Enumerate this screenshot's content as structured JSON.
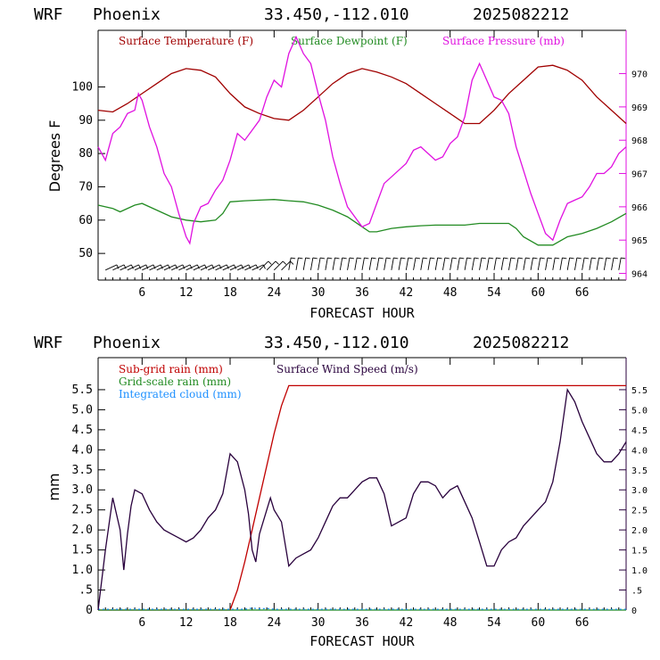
{
  "colors": {
    "temperature": "#a00000",
    "dewpoint": "#228b22",
    "pressure": "#e010e0",
    "subgrid_rain": "#c00000",
    "grid_rain": "#228b22",
    "cloud": "#1e90ff",
    "wind_speed": "#28003c",
    "barbs": "#000000",
    "frame": "#000000"
  },
  "chart_data": [
    {
      "type": "line",
      "header": {
        "model": "WRF",
        "location": "Phoenix",
        "coords": "33.450,-112.010",
        "init": "2025082212"
      },
      "xlabel": "FORECAST HOUR",
      "ylabel": "Degrees F",
      "xlim": [
        0,
        72
      ],
      "ylim": [
        42,
        117
      ],
      "y2lim": [
        963.8,
        971.3
      ],
      "x_ticks": [
        "6",
        "12",
        "18",
        "24",
        "30",
        "36",
        "42",
        "48",
        "54",
        "60",
        "66"
      ],
      "y_ticks": [
        "50",
        "60",
        "70",
        "80",
        "90",
        "100"
      ],
      "y2_ticks": [
        "964",
        "965",
        "966",
        "967",
        "968",
        "969",
        "970"
      ],
      "series": [
        {
          "name": "Surface Temperature (F)",
          "axis": "left",
          "color_key": "temperature",
          "x": [
            0,
            2,
            4,
            6,
            8,
            10,
            12,
            14,
            16,
            18,
            20,
            22,
            24,
            26,
            28,
            30,
            32,
            34,
            36,
            38,
            40,
            42,
            44,
            46,
            48,
            50,
            52,
            54,
            56,
            58,
            60,
            62,
            64,
            66,
            68,
            70,
            72
          ],
          "y": [
            93,
            92.5,
            95,
            98,
            101,
            104,
            105.5,
            105,
            103,
            98,
            94,
            92,
            90.5,
            90,
            93,
            97,
            101,
            104,
            105.5,
            104.5,
            103,
            101,
            98,
            95,
            92,
            89,
            89,
            93,
            98,
            102,
            106,
            106.5,
            105,
            102,
            97,
            93,
            89
          ]
        },
        {
          "name": "Surface Dewpoint (F)",
          "axis": "left",
          "color_key": "dewpoint",
          "x": [
            0,
            2,
            3,
            5,
            6,
            8,
            10,
            12,
            14,
            16,
            17,
            18,
            20,
            22,
            24,
            26,
            28,
            30,
            32,
            34,
            36,
            37,
            38,
            40,
            42,
            44,
            46,
            48,
            50,
            52,
            54,
            56,
            57,
            58,
            60,
            62,
            64,
            66,
            68,
            70,
            72
          ],
          "y": [
            64.5,
            63.5,
            62.5,
            64.5,
            65,
            63,
            61,
            60,
            59.5,
            60,
            62,
            65.5,
            65.8,
            66,
            66.2,
            65.8,
            65.5,
            64.5,
            63,
            61,
            58,
            56.5,
            56.5,
            57.5,
            58,
            58.3,
            58.5,
            58.5,
            58.5,
            59,
            59,
            59,
            57.5,
            55,
            52.5,
            52.5,
            55,
            56,
            57.5,
            59.5,
            62
          ]
        },
        {
          "name": "Surface Pressure (mb)",
          "axis": "right",
          "color_key": "pressure",
          "x": [
            0,
            1,
            2,
            3,
            4,
            5,
            5.5,
            6,
            7,
            8,
            9,
            10,
            11,
            12,
            12.5,
            13,
            14,
            15,
            16,
            17,
            18,
            19,
            20,
            21,
            22,
            23,
            24,
            25,
            26,
            27,
            28,
            29,
            30,
            31,
            32,
            33,
            34,
            35,
            36,
            37,
            38,
            39,
            40,
            41,
            42,
            43,
            44,
            45,
            46,
            47,
            48,
            49,
            50,
            51,
            52,
            53,
            54,
            55,
            56,
            57,
            58,
            59,
            60,
            61,
            62,
            63,
            64,
            65,
            66,
            67,
            68,
            69,
            70,
            71,
            72
          ],
          "y": [
            967.8,
            967.4,
            968.2,
            968.4,
            968.8,
            968.9,
            969.4,
            969.2,
            968.4,
            967.8,
            967.0,
            966.6,
            965.8,
            965.1,
            964.9,
            965.5,
            966.0,
            966.1,
            966.5,
            966.8,
            967.4,
            968.2,
            968.0,
            968.3,
            968.6,
            969.3,
            969.8,
            969.6,
            970.6,
            971.1,
            970.6,
            970.3,
            969.4,
            968.6,
            967.5,
            966.7,
            966.0,
            965.7,
            965.4,
            965.5,
            966.1,
            966.7,
            966.9,
            967.1,
            967.3,
            967.7,
            967.8,
            967.6,
            967.4,
            967.5,
            967.9,
            968.1,
            968.7,
            969.8,
            970.3,
            969.8,
            969.3,
            969.2,
            968.8,
            967.8,
            967.1,
            966.4,
            965.8,
            965.2,
            965.0,
            965.6,
            966.1,
            966.2,
            966.3,
            966.6,
            967.0,
            967.0,
            967.2,
            967.6,
            967.8
          ]
        }
      ],
      "wind_barbs": {
        "x_start": 1,
        "x_end": 71,
        "step": 1
      }
    },
    {
      "type": "line",
      "header": {
        "model": "WRF",
        "location": "Phoenix",
        "coords": "33.450,-112.010",
        "init": "2025082212"
      },
      "xlabel": "FORECAST HOUR",
      "ylabel": "mm",
      "xlim": [
        0,
        72
      ],
      "ylim": [
        0,
        6.3
      ],
      "y2lim": [
        0,
        6.3
      ],
      "x_ticks": [
        "6",
        "12",
        "18",
        "24",
        "30",
        "36",
        "42",
        "48",
        "54",
        "60",
        "66"
      ],
      "y_ticks": [
        "0",
        ".5",
        "1.0",
        "1.5",
        "2.0",
        "2.5",
        "3.0",
        "3.5",
        "4.0",
        "4.5",
        "5.0",
        "5.5"
      ],
      "y2_ticks": [
        "0",
        ".5",
        "1.0",
        "1.5",
        "2.0",
        "2.5",
        "3.0",
        "3.5",
        "4.0",
        "4.5",
        "5.0",
        "5.5"
      ],
      "series": [
        {
          "name": "Sub-grid rain (mm)",
          "axis": "left",
          "color_key": "subgrid_rain",
          "x": [
            0,
            18,
            19,
            20,
            21,
            22,
            23,
            24,
            25,
            26,
            72
          ],
          "y": [
            0,
            0,
            0.5,
            1.2,
            2.0,
            2.8,
            3.6,
            4.4,
            5.1,
            5.6,
            5.6
          ]
        },
        {
          "name": "Grid-scale rain (mm)",
          "axis": "left",
          "color_key": "grid_rain",
          "x": [
            0,
            72
          ],
          "y": [
            0,
            0
          ]
        },
        {
          "name": "Integrated cloud (mm)",
          "axis": "left",
          "color_key": "cloud",
          "x": [
            0,
            20,
            21,
            22,
            23,
            24,
            72
          ],
          "y": [
            0.02,
            0.02,
            0.05,
            0.03,
            0.04,
            0.02,
            0.02
          ]
        },
        {
          "name": "Surface Wind Speed (m/s)",
          "axis": "right",
          "color_key": "wind_speed",
          "x": [
            0,
            1,
            2,
            3,
            3.5,
            4,
            4.5,
            5,
            6,
            7,
            8,
            9,
            10,
            11,
            12,
            13,
            14,
            15,
            16,
            17,
            17.5,
            18,
            19,
            20,
            20.5,
            21,
            21.5,
            22,
            23,
            23.5,
            24,
            25,
            26,
            27,
            28,
            29,
            30,
            31,
            32,
            33,
            34,
            35,
            36,
            37,
            38,
            39,
            40,
            41,
            42,
            43,
            44,
            45,
            46,
            47,
            48,
            49,
            50,
            51,
            52,
            53,
            54,
            55,
            56,
            57,
            58,
            59,
            60,
            61,
            62,
            63,
            64,
            65,
            66,
            67,
            68,
            69,
            70,
            71,
            72
          ],
          "y": [
            0,
            1.5,
            2.8,
            2.0,
            1.0,
            1.9,
            2.6,
            3.0,
            2.9,
            2.5,
            2.2,
            2.0,
            1.9,
            1.8,
            1.7,
            1.8,
            2.0,
            2.3,
            2.5,
            2.9,
            3.4,
            3.9,
            3.7,
            3.0,
            2.4,
            1.5,
            1.2,
            1.9,
            2.5,
            2.8,
            2.5,
            2.2,
            1.1,
            1.3,
            1.4,
            1.5,
            1.8,
            2.2,
            2.6,
            2.8,
            2.8,
            3.0,
            3.2,
            3.3,
            3.3,
            2.9,
            2.1,
            2.2,
            2.3,
            2.9,
            3.2,
            3.2,
            3.1,
            2.8,
            3.0,
            3.1,
            2.7,
            2.3,
            1.7,
            1.1,
            1.1,
            1.5,
            1.7,
            1.8,
            2.1,
            2.3,
            2.5,
            2.7,
            3.2,
            4.2,
            5.5,
            5.2,
            4.7,
            4.3,
            3.9,
            3.7,
            3.7,
            3.9,
            4.2
          ]
        }
      ]
    }
  ]
}
